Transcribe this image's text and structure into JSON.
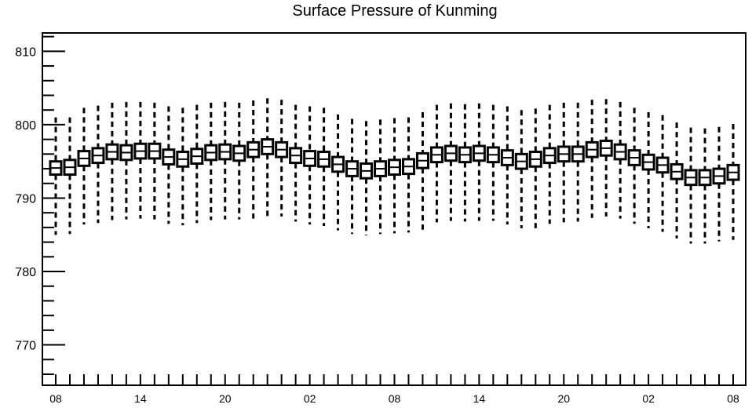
{
  "chart_data": {
    "type": "boxplot",
    "title": "Surface Pressure of Kunming",
    "xlabel": "",
    "ylabel": "",
    "x_tick_labels": [
      "08",
      "14",
      "20",
      "02",
      "08",
      "14",
      "20",
      "02",
      "08"
    ],
    "ylim": [
      764.5,
      812.5
    ],
    "y_ticks": [
      770,
      780,
      790,
      800,
      810
    ],
    "grid": false,
    "series": [
      {
        "center": [
          794.1,
          794.2,
          795.4,
          795.8,
          796.3,
          796.2,
          796.4,
          796.4,
          795.6,
          795.3,
          795.7,
          796.2,
          796.3,
          796.1,
          796.6,
          797.0,
          796.6,
          795.8,
          795.4,
          795.3,
          794.6,
          794.0,
          793.7,
          794.0,
          794.2,
          794.3,
          795.1,
          795.9,
          796.1,
          795.9,
          796.1,
          795.9,
          795.5,
          795.0,
          795.3,
          795.8,
          796.0,
          796.0,
          796.6,
          796.8,
          796.3,
          795.5,
          794.9,
          794.5,
          793.6,
          792.8,
          792.8,
          793.0,
          793.5
        ],
        "box_low": [
          793.2,
          793.2,
          794.4,
          794.8,
          795.3,
          795.2,
          795.4,
          795.4,
          794.6,
          794.3,
          794.7,
          795.2,
          795.3,
          795.1,
          795.6,
          796.0,
          795.6,
          794.8,
          794.4,
          794.3,
          793.6,
          793.0,
          792.7,
          793.0,
          793.2,
          793.3,
          794.1,
          794.9,
          795.1,
          794.9,
          795.1,
          794.9,
          794.5,
          794.0,
          794.3,
          794.8,
          795.0,
          795.0,
          795.6,
          795.8,
          795.3,
          794.5,
          793.9,
          793.5,
          792.6,
          791.8,
          791.8,
          792.0,
          792.5
        ],
        "box_high": [
          795.0,
          795.2,
          796.4,
          796.8,
          797.3,
          797.2,
          797.4,
          797.4,
          796.6,
          796.3,
          796.7,
          797.2,
          797.3,
          797.1,
          797.6,
          798.0,
          797.6,
          796.8,
          796.4,
          796.3,
          795.6,
          795.0,
          794.7,
          795.0,
          795.2,
          795.3,
          796.1,
          796.9,
          797.1,
          796.9,
          797.1,
          796.9,
          796.5,
          796.0,
          796.3,
          796.8,
          797.0,
          797.0,
          797.6,
          797.8,
          797.3,
          796.5,
          795.9,
          795.5,
          794.6,
          793.8,
          793.8,
          794.0,
          794.5
        ],
        "whisker_low": [
          785.0,
          785.1,
          786.4,
          786.6,
          787.0,
          787.1,
          787.2,
          787.1,
          786.5,
          786.3,
          786.6,
          787.0,
          787.1,
          787.1,
          787.2,
          787.5,
          787.5,
          786.8,
          786.4,
          786.2,
          785.6,
          785.1,
          784.9,
          785.1,
          785.2,
          785.3,
          785.7,
          786.7,
          786.9,
          786.8,
          786.9,
          786.9,
          786.4,
          785.9,
          785.9,
          786.5,
          786.7,
          786.8,
          787.3,
          787.5,
          787.2,
          786.5,
          785.9,
          785.4,
          784.5,
          783.8,
          783.8,
          784.1,
          784.3
        ],
        "whisker_high": [
          801.0,
          801.0,
          802.3,
          802.6,
          803.0,
          803.1,
          803.1,
          803.0,
          802.5,
          802.3,
          802.7,
          803.0,
          803.1,
          803.0,
          803.3,
          803.6,
          803.4,
          802.7,
          802.5,
          802.3,
          801.4,
          800.8,
          800.5,
          800.7,
          800.9,
          801.0,
          801.7,
          802.7,
          802.9,
          802.8,
          802.9,
          802.7,
          802.5,
          802.0,
          802.2,
          802.7,
          803.0,
          803.0,
          803.4,
          803.5,
          803.1,
          802.3,
          801.7,
          801.3,
          800.3,
          799.6,
          799.5,
          799.7,
          800.1
        ]
      }
    ]
  }
}
